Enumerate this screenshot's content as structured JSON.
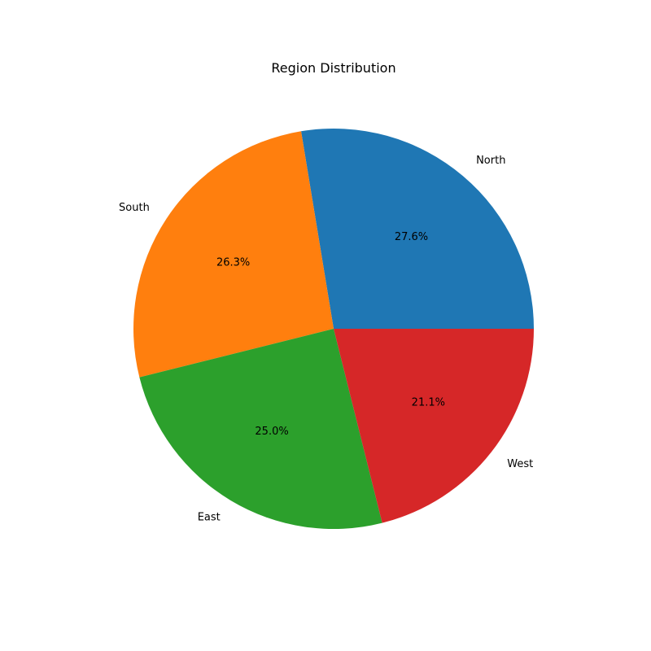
{
  "chart_data": {
    "type": "pie",
    "title": "Region Distribution",
    "categories": [
      "North",
      "South",
      "East",
      "West"
    ],
    "values": [
      27.6,
      26.3,
      25.0,
      21.1
    ],
    "value_labels": [
      "27.6%",
      "26.3%",
      "25.0%",
      "21.1%"
    ],
    "colors": [
      "#1f77b4",
      "#ff7f0e",
      "#2ca02c",
      "#d62728"
    ],
    "start_angle_deg": 0,
    "direction": "counterclockwise",
    "legend": "none"
  }
}
